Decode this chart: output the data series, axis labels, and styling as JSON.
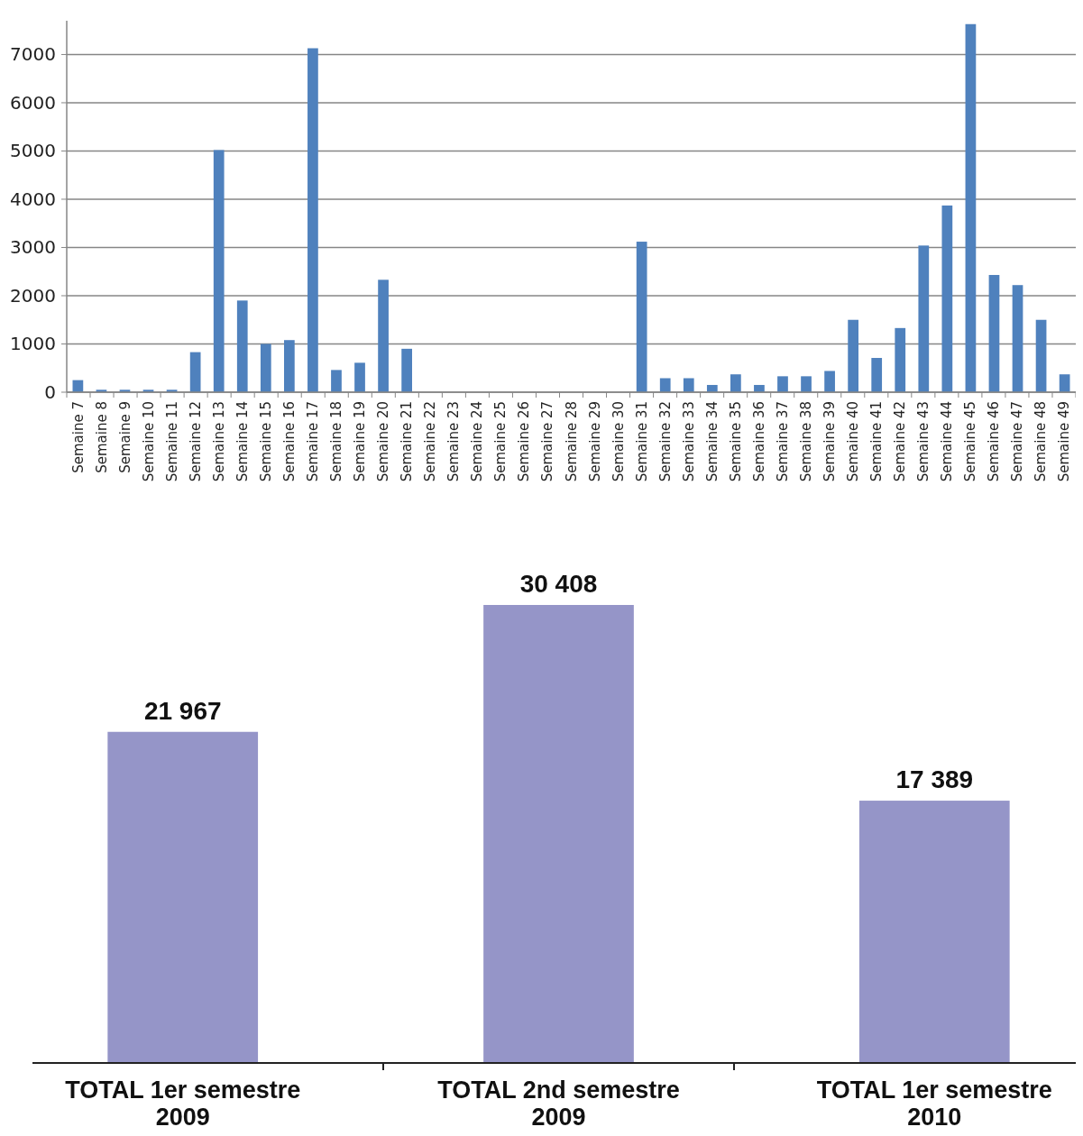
{
  "chart_data": [
    {
      "type": "bar",
      "categories": [
        "Semaine 7",
        "Semaine 8",
        "Semaine 9",
        "Semaine 10",
        "Semaine 11",
        "Semaine 12",
        "Semaine 13",
        "Semaine 14",
        "Semaine 15",
        "Semaine 16",
        "Semaine 17",
        "Semaine 18",
        "Semaine 19",
        "Semaine 20",
        "Semaine 21",
        "Semaine 22",
        "Semaine 23",
        "Semaine 24",
        "Semaine 25",
        "Semaine 26",
        "Semaine 27",
        "Semaine 28",
        "Semaine 29",
        "Semaine 30",
        "Semaine 31",
        "Semaine 32",
        "Semaine 33",
        "Semaine 34",
        "Semaine 35",
        "Semaine 36",
        "Semaine 37",
        "Semaine 38",
        "Semaine 39",
        "Semaine 40",
        "Semaine 41",
        "Semaine 42",
        "Semaine 43",
        "Semaine 44",
        "Semaine 45",
        "Semaine 46",
        "Semaine 47",
        "Semaine 48",
        "Semaine 49"
      ],
      "values": [
        250,
        50,
        50,
        50,
        50,
        830,
        5020,
        1900,
        1000,
        1080,
        7130,
        460,
        610,
        2330,
        900,
        0,
        0,
        0,
        0,
        0,
        0,
        0,
        0,
        0,
        3120,
        290,
        290,
        150,
        370,
        150,
        330,
        330,
        440,
        1500,
        710,
        1330,
        3040,
        3870,
        7630,
        2430,
        2220,
        1500,
        370
      ],
      "color": "#4f81bd",
      "ylim": [
        0,
        7700
      ],
      "yticks": [
        0,
        1000,
        2000,
        3000,
        4000,
        5000,
        6000,
        7000
      ],
      "grid": "y"
    },
    {
      "type": "bar",
      "categories": [
        "TOTAL 1er semestre 2009",
        "TOTAL 2nd semestre 2009",
        "TOTAL 1er semestre 2010"
      ],
      "values": [
        21967,
        30408,
        17389
      ],
      "value_labels": [
        "21 967",
        "30 408",
        "17 389"
      ],
      "color": "#9595c8"
    }
  ]
}
